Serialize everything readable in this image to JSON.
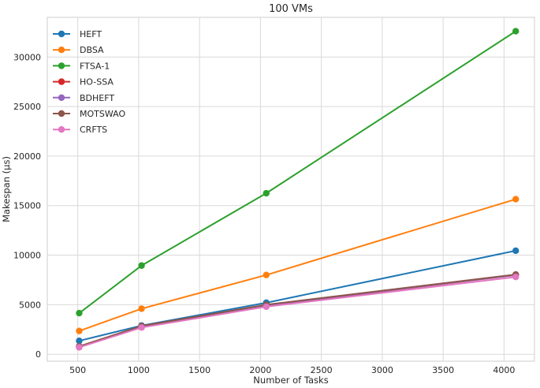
{
  "chart_data": {
    "type": "line",
    "title": "100 VMs",
    "xlabel": "Number of Tasks",
    "ylabel": "Makespan (µs)",
    "xlim": [
      250,
      4250
    ],
    "ylim": [
      -700,
      34000
    ],
    "xticks": [
      500,
      1000,
      1500,
      2000,
      2500,
      3000,
      3500,
      4000
    ],
    "yticks": [
      0,
      5000,
      10000,
      15000,
      20000,
      25000,
      30000
    ],
    "x": [
      512,
      1024,
      2048,
      4096
    ],
    "grid": true,
    "legend_position": "top-left",
    "series": [
      {
        "name": "HEFT",
        "color": "#1f77b4",
        "values": [
          1350,
          2900,
          5200,
          10450
        ]
      },
      {
        "name": "DBSA",
        "color": "#ff7f0e",
        "values": [
          2350,
          4600,
          8000,
          15650
        ]
      },
      {
        "name": "FTSA-1",
        "color": "#2ca02c",
        "values": [
          4150,
          8950,
          16250,
          32600
        ]
      },
      {
        "name": "HO-SSA",
        "color": "#d62728",
        "values": [
          750,
          2800,
          4900,
          8000
        ]
      },
      {
        "name": "BDHEFT",
        "color": "#9467bd",
        "values": [
          780,
          2820,
          4950,
          8000
        ]
      },
      {
        "name": "MOTSWAO",
        "color": "#8c564b",
        "values": [
          800,
          2850,
          5000,
          8050
        ]
      },
      {
        "name": "CRFTS",
        "color": "#e377c2",
        "values": [
          700,
          2700,
          4800,
          7800
        ]
      }
    ]
  }
}
